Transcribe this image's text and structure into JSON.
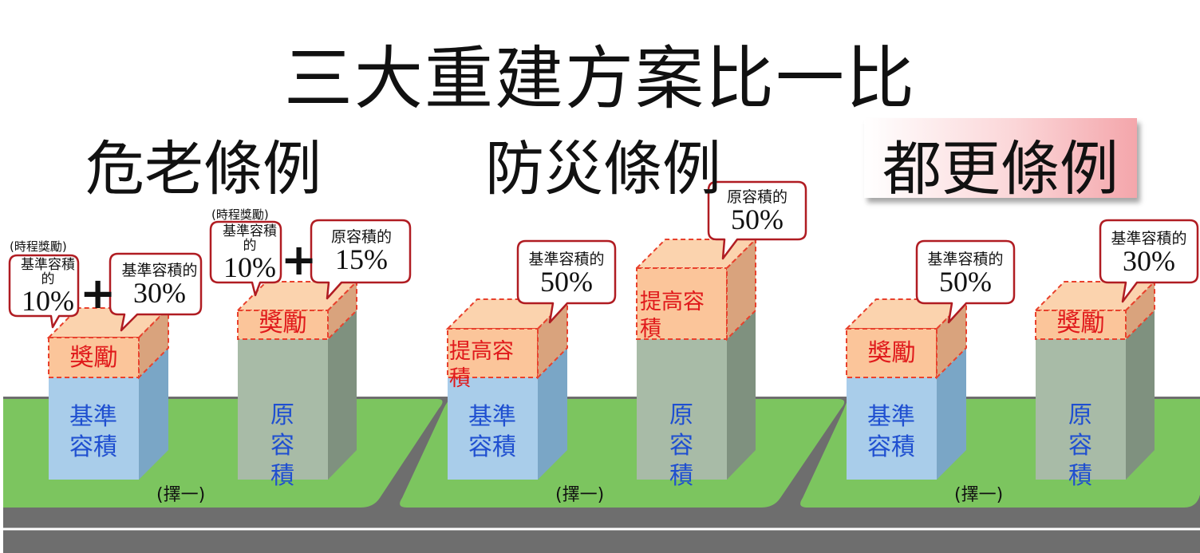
{
  "title": "三大重建方案比一比",
  "sections": [
    {
      "name": "危老條例",
      "choose_label": "(擇一)",
      "plus": "+",
      "building_a": {
        "base_label": "基準容積",
        "bonus_label": "獎勵",
        "note": "(時程獎勵)",
        "callout_top": "基準容積的",
        "callout_value": "10%"
      },
      "callout_a2": {
        "top": "基準容積的",
        "value": "30%"
      },
      "building_b": {
        "base_label": "原容積",
        "bonus_label": "獎勵",
        "note": "(時程獎勵)",
        "callout_top": "基準容積的",
        "callout_value": "10%"
      },
      "callout_b2": {
        "top": "原容積的",
        "value": "15%"
      }
    },
    {
      "name": "防災條例",
      "choose_label": "(擇一)",
      "building_a": {
        "base_label": "基準容積",
        "bonus_label": "提高容積",
        "callout_top": "基準容積的",
        "callout_value": "50%"
      },
      "building_b": {
        "base_label": "原容積",
        "bonus_label": "提高容積",
        "callout_top": "原容積的",
        "callout_value": "50%"
      }
    },
    {
      "name": "都更條例",
      "choose_label": "(擇一)",
      "building_a": {
        "base_label": "基準容積",
        "bonus_label": "獎勵",
        "callout_top": "基準容積的",
        "callout_value": "50%"
      },
      "building_b": {
        "base_label": "原容積",
        "bonus_label": "獎勵",
        "callout_top": "基準容積的",
        "callout_value": "30%"
      }
    }
  ],
  "colors": {
    "road": "#6e6e6e",
    "grass": "#7cc55f",
    "blue_building": "#a9cdea",
    "gray_building": "#a8bba7",
    "bonus_fill": "#fbc59a",
    "callout_border": "#b01c22",
    "dashed_red": "#e8412d"
  }
}
